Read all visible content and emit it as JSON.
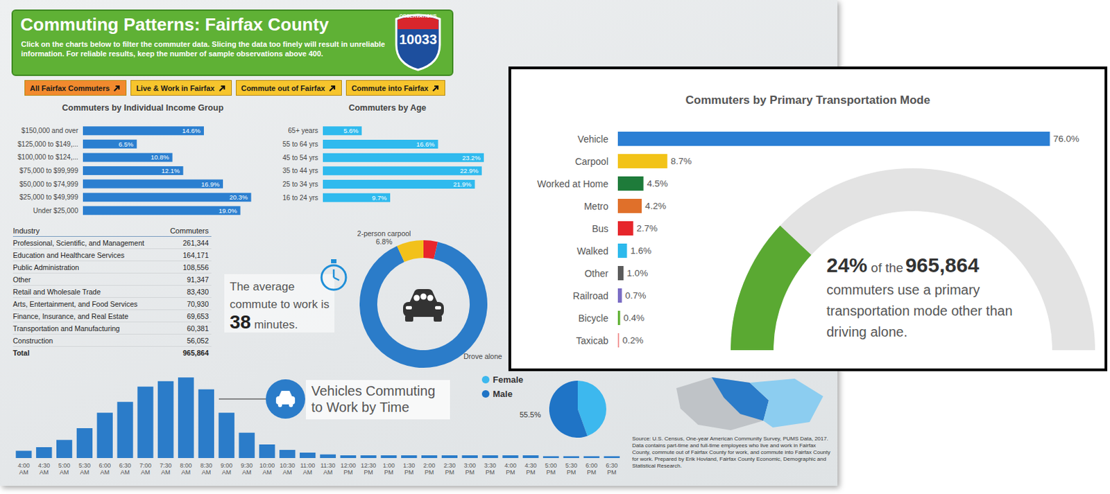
{
  "header": {
    "title": "Commuting Patterns: Fairfax County",
    "subtitle": "Click on the charts below to filter the commuter data. Slicing the data too finely will result in unreliable information. For reliable results, keep the number of sample observations above 400.",
    "observations_label": "OBSERVATIONS",
    "observations": 10033
  },
  "buttons": [
    "All Fairfax Commuters",
    "Live & Work in Fairfax",
    "Commute out of Fairfax",
    "Commute into Fairfax"
  ],
  "industry_table": {
    "columns": [
      "Industry",
      "Commuters"
    ],
    "rows": [
      [
        "Professional, Scientific, and Management",
        "261,344"
      ],
      [
        "Education and Healthcare Services",
        "164,171"
      ],
      [
        "Public Administration",
        "108,556"
      ],
      [
        "Other",
        "91,347"
      ],
      [
        "Retail and Wholesale Trade",
        "83,430"
      ],
      [
        "Arts, Entertainment, and Food Services",
        "70,930"
      ],
      [
        "Finance, Insurance, and Real Estate",
        "69,653"
      ],
      [
        "Transportation and Manufacturing",
        "60,381"
      ],
      [
        "Construction",
        "56,052"
      ]
    ],
    "total": [
      "Total",
      "965,864"
    ]
  },
  "commute_time": {
    "text_before": "The average commute to work is",
    "value": 38,
    "text_after": "minutes."
  },
  "source": "Source: U.S. Census, One-year American Community Survey, PUMS Data, 2017. Data contains part-time and full-time employees who live and work in Fairfax County, commute out of Fairfax County for work, and commute into Fairfax County for work. Prepared by Erik Hovland, Fairfax County Economic, Demographic and Statistical Research.",
  "chart_data": [
    {
      "type": "bar",
      "orientation": "horizontal",
      "title": "Commuters by Individual Income Group",
      "categories": [
        "$150,000 and over",
        "$125,000 to $149,...",
        "$100,000 to $124,...",
        "$75,000 to $99,999",
        "$50,000 to $74,999",
        "$25,000 to $49,999",
        "Under $25,000"
      ],
      "values": [
        14.6,
        6.5,
        10.8,
        12.1,
        16.9,
        20.3,
        19.0
      ],
      "value_labels": [
        "14.6%",
        "6.5%",
        "10.8%",
        "12.1%",
        "16.9%",
        "20.3%",
        "19.0%"
      ],
      "color": "#2b7fd0",
      "xlim": [
        0,
        21
      ],
      "data_labels": true,
      "tick_labels": "y",
      "grid": false
    },
    {
      "type": "bar",
      "orientation": "horizontal",
      "title": "Commuters by Age",
      "categories": [
        "65+ years",
        "55 to 64 yrs",
        "45 to 54 yrs",
        "35 to 44 yrs",
        "25 to 34 yrs",
        "16 to 24 yrs"
      ],
      "values": [
        5.6,
        16.6,
        23.2,
        22.9,
        21.9,
        9.7
      ],
      "value_labels": [
        "5.6%",
        "16.6%",
        "23.2%",
        "22.9%",
        "21.9%",
        "9.7%"
      ],
      "color": "#2fbaee",
      "xlim": [
        0,
        24
      ],
      "data_labels": true,
      "tick_labels": "y",
      "grid": false
    },
    {
      "type": "pie",
      "categories": [
        null,
        "Drove alone",
        "2-person carpool"
      ],
      "values": [
        3.6,
        89.6,
        6.8
      ],
      "value_labels": [
        null,
        null,
        "6.8%"
      ],
      "colors": [
        "#e8262c",
        "#2b7cc9",
        "#f2c11a"
      ],
      "data_labels": true
    },
    {
      "type": "bar",
      "title": "Vehicles Commuting to Work by Time",
      "categories": [
        "4:00 AM",
        "4:30 AM",
        "5:00 AM",
        "5:30 AM",
        "6:00 AM",
        "6:30 AM",
        "7:00 AM",
        "7:30 AM",
        "8:00 AM",
        "8:30 AM",
        "9:00 AM",
        "9:30 AM",
        "10:00 AM",
        "10:30 AM",
        "11:00 AM",
        "11:30 AM",
        "12:00 PM",
        "12:30 PM",
        "1:00 PM",
        "1:30 PM",
        "2:00 PM",
        "2:30 PM",
        "3:00 PM",
        "3:30 PM",
        "4:00 PM",
        "4:30 PM",
        "5:00 PM",
        "5:30 PM",
        "6:00 PM",
        "6:30 PM"
      ],
      "values": [
        8,
        12,
        20,
        33,
        50,
        62,
        79,
        85,
        89,
        76,
        50,
        28,
        15,
        9,
        6,
        4,
        3,
        3,
        3,
        3,
        3,
        3,
        3,
        3,
        3,
        3,
        2,
        2,
        2,
        2
      ],
      "color": "#2b7cc9",
      "ylim": [
        0,
        90
      ],
      "tick_labels": "x",
      "grid": false
    },
    {
      "type": "pie",
      "categories": [
        "Female",
        "Male"
      ],
      "values": [
        44.5,
        55.5
      ],
      "value_labels": [
        null,
        "55.5%"
      ],
      "colors": [
        "#3db8ee",
        "#1f74c6"
      ],
      "legend": "left",
      "data_labels": true
    },
    {
      "type": "bar",
      "orientation": "horizontal",
      "title": "Commuters by Primary Transportation Mode",
      "categories": [
        "Vehicle",
        "Carpool",
        "Worked at Home",
        "Metro",
        "Bus",
        "Walked",
        "Other",
        "Railroad",
        "Bicycle",
        "Taxicab"
      ],
      "values": [
        76.0,
        8.7,
        4.5,
        4.2,
        2.7,
        1.6,
        1.0,
        0.7,
        0.4,
        0.2
      ],
      "value_labels": [
        "76.0%",
        "8.7%",
        "4.5%",
        "4.2%",
        "2.7%",
        "1.6%",
        "1.0%",
        "0.7%",
        "0.4%",
        "0.2%"
      ],
      "colors": [
        "#2b7fd4",
        "#f2c318",
        "#1e7b3a",
        "#e0702a",
        "#e6262b",
        "#2cb9ec",
        "#5a5a5a",
        "#7a6cc4",
        "#62b236",
        "#f08a8a"
      ],
      "xlim": [
        0,
        80
      ],
      "data_labels": true,
      "tick_labels": "y",
      "grid": false
    },
    {
      "type": "gauge",
      "value": 24,
      "value_label": "24%",
      "ylim": [
        0,
        100
      ],
      "color": "#5aa932",
      "tick_labels": false,
      "annotations": [
        "of the",
        "965,864",
        "commuters use a primary transportation mode other than driving alone."
      ]
    }
  ]
}
